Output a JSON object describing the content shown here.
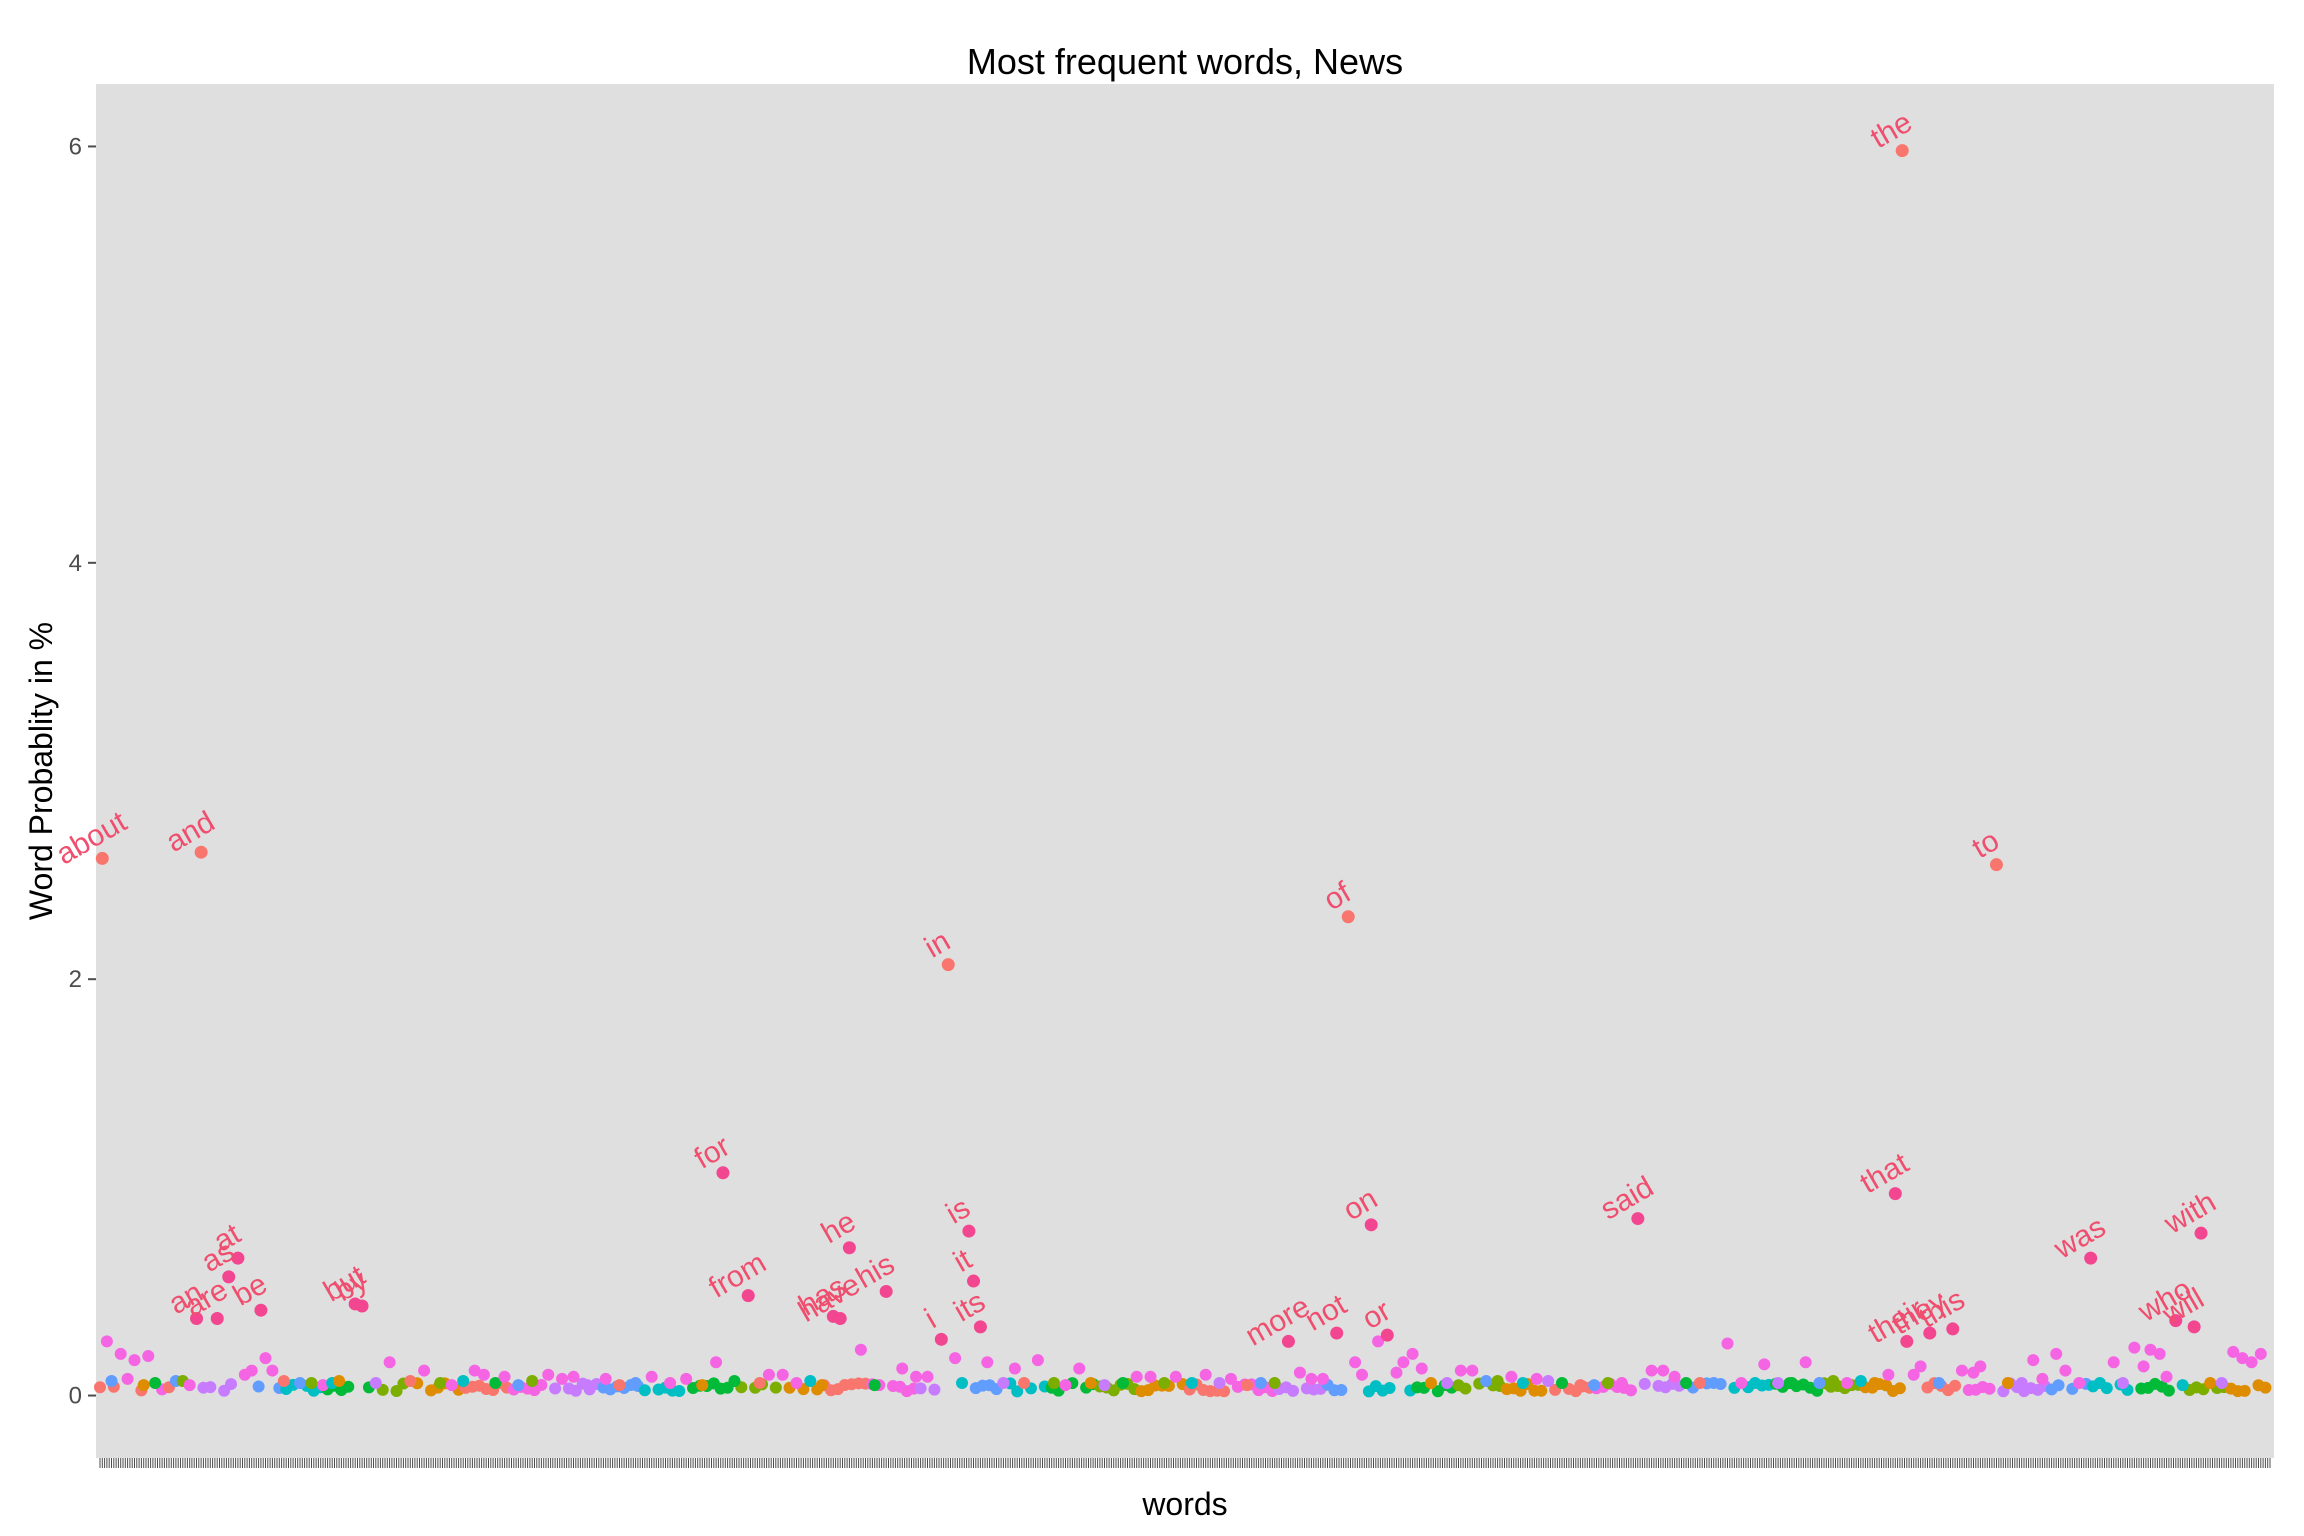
{
  "chart_data": {
    "type": "scatter",
    "title": "Most frequent words, News",
    "xlabel": "words",
    "ylabel": "Word Probablity in %",
    "ylim": [
      -0.3,
      6.3
    ],
    "yticks": [
      0,
      2,
      4,
      6
    ],
    "grid": false,
    "legend": "none",
    "panel_color": "#dfdfdf",
    "label_color": "#f04e6e",
    "series_colors": [
      "#f8766d",
      "#f564e3",
      "#c77cff",
      "#619cff",
      "#00bfc4",
      "#00ba38",
      "#7cae00",
      "#de8c00"
    ],
    "labeled_points": [
      {
        "label": "about",
        "x": 1,
        "y": 2.58
      },
      {
        "label": "and",
        "x": 44,
        "y": 2.61
      },
      {
        "label": "an",
        "x": 42,
        "y": 0.37
      },
      {
        "label": "are",
        "x": 51,
        "y": 0.37
      },
      {
        "label": "as",
        "x": 56,
        "y": 0.57
      },
      {
        "label": "at",
        "x": 60,
        "y": 0.66
      },
      {
        "label": "be",
        "x": 70,
        "y": 0.41
      },
      {
        "label": "but",
        "x": 111,
        "y": 0.44
      },
      {
        "label": "by",
        "x": 114,
        "y": 0.43
      },
      {
        "label": "for",
        "x": 271,
        "y": 1.07
      },
      {
        "label": "from",
        "x": 282,
        "y": 0.48
      },
      {
        "label": "has",
        "x": 319,
        "y": 0.38
      },
      {
        "label": "have",
        "x": 322,
        "y": 0.37
      },
      {
        "label": "he",
        "x": 326,
        "y": 0.71
      },
      {
        "label": "his",
        "x": 342,
        "y": 0.5
      },
      {
        "label": "i",
        "x": 366,
        "y": 0.27
      },
      {
        "label": "in",
        "x": 369,
        "y": 2.07
      },
      {
        "label": "is",
        "x": 378,
        "y": 0.79
      },
      {
        "label": "it",
        "x": 380,
        "y": 0.55
      },
      {
        "label": "its",
        "x": 383,
        "y": 0.33
      },
      {
        "label": "more",
        "x": 517,
        "y": 0.26
      },
      {
        "label": "not",
        "x": 538,
        "y": 0.3
      },
      {
        "label": "of",
        "x": 543,
        "y": 2.3
      },
      {
        "label": "on",
        "x": 553,
        "y": 0.82
      },
      {
        "label": "or",
        "x": 560,
        "y": 0.29
      },
      {
        "label": "said",
        "x": 669,
        "y": 0.85
      },
      {
        "label": "that",
        "x": 781,
        "y": 0.97
      },
      {
        "label": "the",
        "x": 784,
        "y": 5.98
      },
      {
        "label": "their",
        "x": 786,
        "y": 0.26
      },
      {
        "label": "they",
        "x": 796,
        "y": 0.3
      },
      {
        "label": "this",
        "x": 806,
        "y": 0.32
      },
      {
        "label": "to",
        "x": 825,
        "y": 2.55
      },
      {
        "label": "was",
        "x": 866,
        "y": 0.66
      },
      {
        "label": "who",
        "x": 903,
        "y": 0.36
      },
      {
        "label": "will",
        "x": 911,
        "y": 0.33
      },
      {
        "label": "with",
        "x": 914,
        "y": 0.78
      }
    ],
    "unlabeled_points": [
      [
        3,
        0.26
      ],
      [
        5,
        0.07
      ],
      [
        9,
        0.2
      ],
      [
        12,
        0.08
      ],
      [
        15,
        0.17
      ],
      [
        19,
        0.05
      ],
      [
        21,
        0.19
      ],
      [
        24,
        0.06
      ],
      [
        30,
        0.04
      ],
      [
        33,
        0.07
      ],
      [
        36,
        0.07
      ],
      [
        39,
        0.05
      ],
      [
        63,
        0.1
      ],
      [
        66,
        0.12
      ],
      [
        72,
        0.18
      ],
      [
        75,
        0.12
      ],
      [
        80,
        0.07
      ],
      [
        87,
        0.06
      ],
      [
        92,
        0.06
      ],
      [
        97,
        0.05
      ],
      [
        101,
        0.06
      ],
      [
        104,
        0.07
      ],
      [
        120,
        0.06
      ],
      [
        126,
        0.16
      ],
      [
        135,
        0.07
      ],
      [
        141,
        0.12
      ],
      [
        148,
        0.06
      ],
      [
        153,
        0.05
      ],
      [
        158,
        0.07
      ],
      [
        163,
        0.12
      ],
      [
        167,
        0.1
      ],
      [
        172,
        0.06
      ],
      [
        176,
        0.09
      ],
      [
        182,
        0.05
      ],
      [
        188,
        0.07
      ],
      [
        195,
        0.1
      ],
      [
        201,
        0.08
      ],
      [
        206,
        0.09
      ],
      [
        212,
        0.05
      ],
      [
        220,
        0.08
      ],
      [
        226,
        0.05
      ],
      [
        233,
        0.06
      ],
      [
        240,
        0.09
      ],
      [
        248,
        0.06
      ],
      [
        255,
        0.08
      ],
      [
        262,
        0.05
      ],
      [
        268,
        0.16
      ],
      [
        276,
        0.07
      ],
      [
        287,
        0.06
      ],
      [
        291,
        0.1
      ],
      [
        297,
        0.1
      ],
      [
        303,
        0.06
      ],
      [
        309,
        0.07
      ],
      [
        314,
        0.05
      ],
      [
        331,
        0.22
      ],
      [
        337,
        0.05
      ],
      [
        349,
        0.13
      ],
      [
        355,
        0.09
      ],
      [
        360,
        0.09
      ],
      [
        372,
        0.18
      ],
      [
        375,
        0.06
      ],
      [
        386,
        0.16
      ],
      [
        393,
        0.06
      ],
      [
        398,
        0.13
      ],
      [
        402,
        0.06
      ],
      [
        408,
        0.17
      ],
      [
        415,
        0.06
      ],
      [
        420,
        0.05
      ],
      [
        426,
        0.13
      ],
      [
        431,
        0.06
      ],
      [
        437,
        0.05
      ],
      [
        445,
        0.06
      ],
      [
        451,
        0.09
      ],
      [
        457,
        0.09
      ],
      [
        463,
        0.06
      ],
      [
        468,
        0.09
      ],
      [
        475,
        0.06
      ],
      [
        481,
        0.1
      ],
      [
        487,
        0.06
      ],
      [
        492,
        0.08
      ],
      [
        499,
        0.05
      ],
      [
        505,
        0.06
      ],
      [
        511,
        0.06
      ],
      [
        522,
        0.11
      ],
      [
        527,
        0.08
      ],
      [
        532,
        0.08
      ],
      [
        546,
        0.16
      ],
      [
        549,
        0.1
      ],
      [
        556,
        0.26
      ],
      [
        564,
        0.11
      ],
      [
        567,
        0.16
      ],
      [
        571,
        0.2
      ],
      [
        575,
        0.13
      ],
      [
        579,
        0.06
      ],
      [
        586,
        0.06
      ],
      [
        592,
        0.12
      ],
      [
        597,
        0.12
      ],
      [
        603,
        0.07
      ],
      [
        608,
        0.07
      ],
      [
        614,
        0.09
      ],
      [
        619,
        0.06
      ],
      [
        625,
        0.08
      ],
      [
        630,
        0.07
      ],
      [
        636,
        0.06
      ],
      [
        644,
        0.05
      ],
      [
        650,
        0.05
      ],
      [
        656,
        0.06
      ],
      [
        662,
        0.06
      ],
      [
        675,
        0.12
      ],
      [
        680,
        0.12
      ],
      [
        685,
        0.09
      ],
      [
        690,
        0.06
      ],
      [
        696,
        0.06
      ],
      [
        702,
        0.06
      ],
      [
        708,
        0.25
      ],
      [
        714,
        0.06
      ],
      [
        720,
        0.06
      ],
      [
        724,
        0.15
      ],
      [
        730,
        0.06
      ],
      [
        736,
        0.06
      ],
      [
        742,
        0.16
      ],
      [
        748,
        0.06
      ],
      [
        754,
        0.07
      ],
      [
        760,
        0.06
      ],
      [
        766,
        0.07
      ],
      [
        772,
        0.06
      ],
      [
        778,
        0.1
      ],
      [
        789,
        0.1
      ],
      [
        792,
        0.14
      ],
      [
        800,
        0.06
      ],
      [
        810,
        0.12
      ],
      [
        815,
        0.11
      ],
      [
        818,
        0.14
      ],
      [
        830,
        0.06
      ],
      [
        836,
        0.06
      ],
      [
        841,
        0.17
      ],
      [
        845,
        0.08
      ],
      [
        851,
        0.2
      ],
      [
        855,
        0.12
      ],
      [
        861,
        0.06
      ],
      [
        870,
        0.06
      ],
      [
        876,
        0.16
      ],
      [
        880,
        0.06
      ],
      [
        885,
        0.23
      ],
      [
        889,
        0.14
      ],
      [
        892,
        0.22
      ],
      [
        896,
        0.2
      ],
      [
        899,
        0.09
      ],
      [
        906,
        0.05
      ],
      [
        918,
        0.06
      ],
      [
        923,
        0.06
      ],
      [
        928,
        0.21
      ],
      [
        932,
        0.18
      ],
      [
        936,
        0.16
      ],
      [
        940,
        0.2
      ]
    ],
    "baseline_points_y": 0.04
  }
}
